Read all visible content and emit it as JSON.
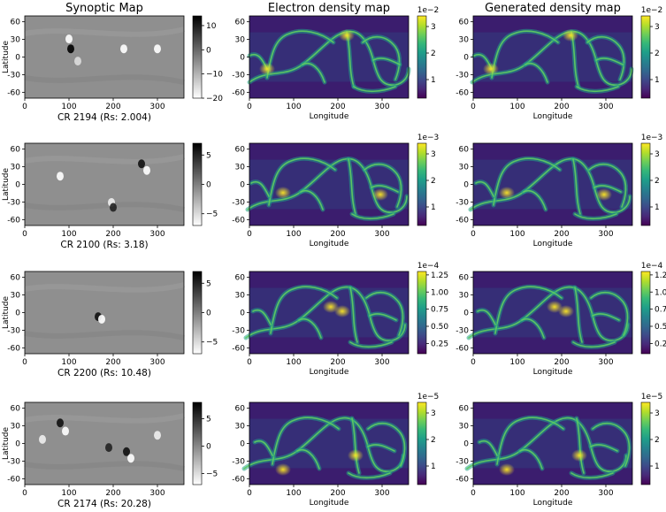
{
  "column_titles": [
    "Synoptic Map",
    "Electron density map",
    "Generated density map"
  ],
  "axis_labels": {
    "latitude": "Latitude",
    "longitude": "Longitude"
  },
  "x_ticks": [
    0,
    100,
    200,
    300
  ],
  "xlim": [
    0,
    360
  ],
  "colors": {
    "viridis": [
      "#440154",
      "#482878",
      "#3e4989",
      "#31688e",
      "#26828e",
      "#1f9e89",
      "#35b779",
      "#6ece58",
      "#b5de2b",
      "#fde725"
    ],
    "gray": [
      "#ffffff",
      "#000000"
    ]
  },
  "rows": [
    {
      "caption": "CR 2194 (Rs: 2.004)",
      "lat_ticks": [
        60,
        30,
        0,
        -30,
        -60
      ],
      "ylim": [
        -70,
        70
      ],
      "synoptic_cbar": {
        "ticks": [
          10,
          0,
          -10,
          -20
        ],
        "range": [
          -20,
          14
        ]
      },
      "density_cbar": {
        "ticks": [
          "3",
          "2",
          "1"
        ],
        "tick_values": [
          3,
          2,
          1
        ],
        "range": [
          0.3,
          3.4
        ],
        "exponent": "1e−2"
      }
    },
    {
      "caption": "CR 2100 (Rs: 3.18)",
      "lat_ticks": [
        60,
        30,
        0,
        -30,
        -60
      ],
      "ylim": [
        -70,
        70
      ],
      "synoptic_cbar": {
        "ticks": [
          5,
          0,
          -5
        ],
        "range": [
          -7,
          7
        ]
      },
      "density_cbar": {
        "ticks": [
          "3",
          "2",
          "1"
        ],
        "tick_values": [
          3,
          2,
          1
        ],
        "range": [
          0.3,
          3.4
        ],
        "exponent": "1e−3"
      }
    },
    {
      "caption": "CR 2200 (Rs: 10.48)",
      "lat_ticks": [
        60,
        30,
        0,
        -30,
        -60
      ],
      "ylim": [
        -70,
        70
      ],
      "synoptic_cbar": {
        "ticks": [
          5,
          0,
          -5
        ],
        "range": [
          -7,
          7
        ]
      },
      "density_cbar": {
        "ticks": [
          "1.25",
          "1.00",
          "0.75",
          "0.50",
          "0.25"
        ],
        "tick_values": [
          1.25,
          1.0,
          0.75,
          0.5,
          0.25
        ],
        "range": [
          0.1,
          1.3
        ],
        "exponent": "1e−4"
      }
    },
    {
      "caption": "CR 2174 (Rs: 20.28)",
      "lat_ticks": [
        60,
        30,
        0,
        -30,
        -60
      ],
      "ylim": [
        -70,
        70
      ],
      "synoptic_cbar": {
        "ticks": [
          5,
          0,
          -5
        ],
        "range": [
          -7,
          8
        ]
      },
      "density_cbar": {
        "ticks": [
          "3",
          "2",
          "1"
        ],
        "tick_values": [
          3,
          2,
          1
        ],
        "range": [
          0.3,
          3.4
        ],
        "exponent": "1e−5"
      }
    }
  ],
  "chart_data": {
    "type": "heatmap",
    "panels": "4 rows x 3 columns of longitude-latitude maps (synoptic magnetogram, electron density, generated density)"
  }
}
